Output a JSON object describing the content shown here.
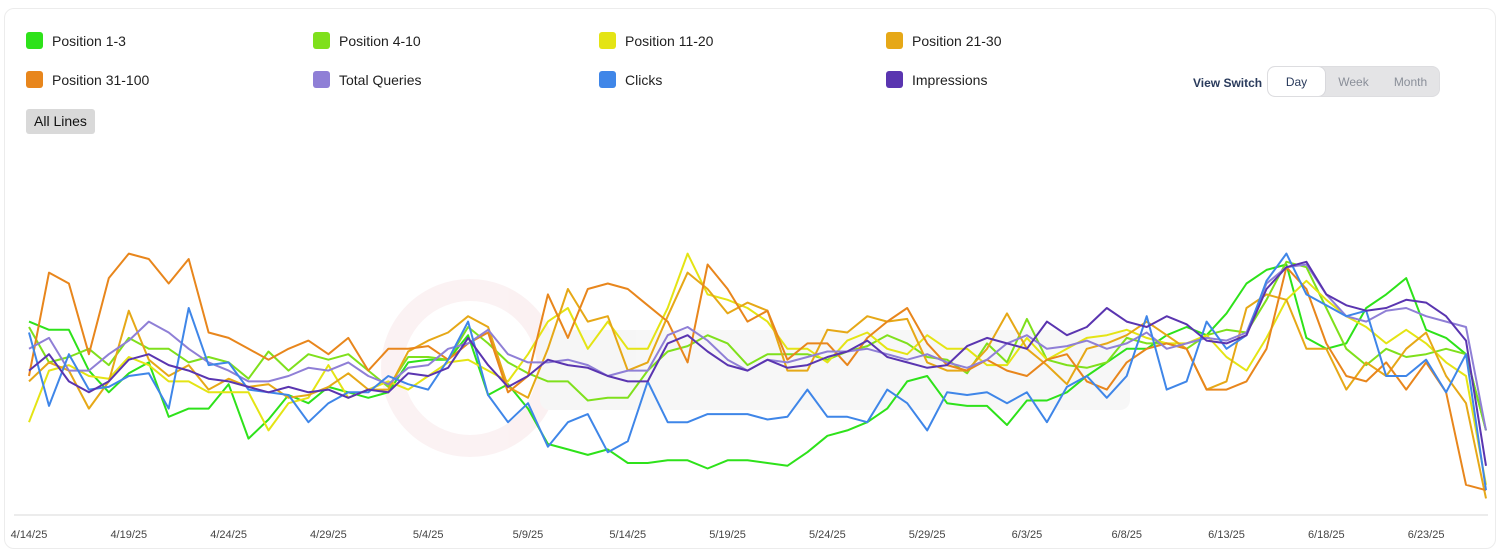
{
  "legend": [
    {
      "label": "Position 1-3",
      "color": "#2ee21a"
    },
    {
      "label": "Position 4-10",
      "color": "#7fe01c"
    },
    {
      "label": "Position 11-20",
      "color": "#e4e414"
    },
    {
      "label": "Position 21-30",
      "color": "#e6a817"
    },
    {
      "label": "Position 31-100",
      "color": "#e8861c"
    },
    {
      "label": "Total Queries",
      "color": "#8f7fd6"
    },
    {
      "label": "Clicks",
      "color": "#3f86e8"
    },
    {
      "label": "Impressions",
      "color": "#5a35b0"
    }
  ],
  "view_switch": {
    "label": "View Switch",
    "options": [
      "Day",
      "Week",
      "Month"
    ],
    "selected": "Day"
  },
  "all_lines_label": "All Lines",
  "chart_data": {
    "type": "line",
    "x": [
      "4/14/25",
      "4/15/25",
      "4/16/25",
      "4/17/25",
      "4/18/25",
      "4/19/25",
      "4/20/25",
      "4/21/25",
      "4/22/25",
      "4/23/25",
      "4/24/25",
      "4/25/25",
      "4/26/25",
      "4/27/25",
      "4/28/25",
      "4/29/25",
      "4/30/25",
      "5/1/25",
      "5/2/25",
      "5/3/25",
      "5/4/25",
      "5/5/25",
      "5/6/25",
      "5/7/25",
      "5/8/25",
      "5/9/25",
      "5/10/25",
      "5/11/25",
      "5/12/25",
      "5/13/25",
      "5/14/25",
      "5/15/25",
      "5/16/25",
      "5/17/25",
      "5/18/25",
      "5/19/25",
      "5/20/25",
      "5/21/25",
      "5/22/25",
      "5/23/25",
      "5/24/25",
      "5/25/25",
      "5/26/25",
      "5/27/25",
      "5/28/25",
      "5/29/25",
      "5/30/25",
      "5/31/25",
      "6/1/25",
      "6/2/25",
      "6/3/25",
      "6/4/25",
      "6/5/25",
      "6/6/25",
      "6/7/25",
      "6/8/25",
      "6/9/25",
      "6/10/25",
      "6/11/25",
      "6/12/25",
      "6/13/25",
      "6/14/25",
      "6/15/25",
      "6/16/25",
      "6/17/25",
      "6/18/25",
      "6/19/25",
      "6/20/25",
      "6/21/25",
      "6/22/25",
      "6/23/25",
      "6/24/25",
      "6/25/25",
      "6/26/25"
    ],
    "x_tick_labels": [
      "4/14/25",
      "4/19/25",
      "4/24/25",
      "4/29/25",
      "5/4/25",
      "5/9/25",
      "5/14/25",
      "5/19/25",
      "5/24/25",
      "5/29/25",
      "6/3/25",
      "6/8/25",
      "6/13/25",
      "6/18/25",
      "6/23/25"
    ],
    "y_range": [
      0,
      100
    ],
    "grid": false,
    "legend_placement": "top",
    "series": [
      {
        "name": "Position 1-3",
        "values": [
          70,
          67,
          67,
          52,
          44,
          51,
          55,
          35,
          38,
          38,
          47,
          27,
          34,
          43,
          40,
          46,
          44,
          42,
          44,
          55,
          56,
          56,
          65,
          43,
          47,
          38,
          25,
          23,
          21,
          23,
          18,
          18,
          19,
          19,
          16,
          19,
          19,
          18,
          17,
          22,
          28,
          30,
          33,
          38,
          48,
          50,
          40,
          39,
          39,
          32,
          41,
          41,
          44,
          50,
          55,
          60,
          60,
          65,
          68,
          65,
          73,
          84,
          89,
          91,
          64,
          60,
          62,
          75,
          80,
          86,
          67,
          64,
          58,
          30
        ]
      },
      {
        "name": "Position 4-10",
        "values": [
          68,
          55,
          57,
          60,
          54,
          64,
          60,
          60,
          55,
          57,
          55,
          49,
          59,
          52,
          58,
          56,
          58,
          52,
          46,
          57,
          57,
          56,
          68,
          62,
          55,
          51,
          48,
          48,
          41,
          42,
          42,
          52,
          59,
          61,
          65,
          62,
          54,
          58,
          58,
          58,
          56,
          59,
          61,
          65,
          62,
          57,
          56,
          51,
          62,
          55,
          71,
          56,
          54,
          53,
          55,
          64,
          62,
          62,
          60,
          65,
          67,
          66,
          78,
          92,
          90,
          75,
          60,
          54,
          60,
          57,
          58,
          60,
          58,
          30
        ]
      },
      {
        "name": "Position 11-20",
        "values": [
          33,
          52,
          54,
          50,
          49,
          57,
          54,
          48,
          48,
          44,
          44,
          44,
          30,
          40,
          42,
          54,
          42,
          45,
          48,
          45,
          50,
          55,
          56,
          52,
          48,
          58,
          70,
          75,
          60,
          70,
          60,
          60,
          75,
          95,
          80,
          78,
          75,
          70,
          60,
          60,
          55,
          63,
          66,
          60,
          58,
          65,
          60,
          60,
          54,
          54,
          64,
          56,
          60,
          64,
          65,
          67,
          64,
          62,
          62,
          65,
          57,
          52,
          64,
          78,
          85,
          78,
          72,
          68,
          62,
          67,
          62,
          55,
          50,
          10
        ]
      },
      {
        "name": "Position 21-30",
        "values": [
          48,
          55,
          52,
          38,
          48,
          74,
          56,
          50,
          54,
          45,
          49,
          46,
          47,
          42,
          43,
          46,
          51,
          45,
          45,
          59,
          63,
          66,
          72,
          68,
          46,
          42,
          60,
          82,
          70,
          72,
          52,
          55,
          72,
          88,
          82,
          73,
          77,
          74,
          52,
          52,
          67,
          66,
          72,
          70,
          71,
          55,
          52,
          52,
          60,
          73,
          60,
          54,
          47,
          60,
          62,
          65,
          70,
          65,
          60,
          45,
          48,
          75,
          80,
          78,
          60,
          60,
          45,
          55,
          50,
          60,
          66,
          50,
          40,
          5
        ]
      },
      {
        "name": "Position 31-100",
        "values": [
          50,
          88,
          84,
          58,
          86,
          95,
          93,
          84,
          93,
          66,
          64,
          60,
          56,
          60,
          63,
          58,
          64,
          52,
          60,
          60,
          61,
          56,
          62,
          66,
          44,
          50,
          80,
          64,
          82,
          84,
          82,
          76,
          70,
          55,
          91,
          82,
          70,
          74,
          56,
          62,
          62,
          54,
          64,
          70,
          75,
          62,
          54,
          52,
          56,
          52,
          50,
          56,
          58,
          48,
          45,
          55,
          60,
          62,
          60,
          45,
          45,
          48,
          60,
          90,
          82,
          62,
          50,
          48,
          55,
          45,
          55,
          44,
          10,
          8
        ]
      },
      {
        "name": "Total Queries",
        "values": [
          60,
          64,
          52,
          52,
          58,
          63,
          70,
          66,
          60,
          55,
          52,
          48,
          48,
          50,
          53,
          52,
          55,
          50,
          47,
          53,
          54,
          60,
          62,
          67,
          58,
          55,
          55,
          56,
          54,
          50,
          52,
          52,
          65,
          68,
          63,
          56,
          52,
          56,
          55,
          57,
          59,
          59,
          60,
          58,
          56,
          58,
          55,
          53,
          56,
          62,
          65,
          60,
          61,
          63,
          60,
          62,
          66,
          60,
          62,
          64,
          63,
          66,
          84,
          90,
          91,
          80,
          72,
          70,
          74,
          75,
          72,
          70,
          68,
          30
        ]
      },
      {
        "name": "Clicks",
        "values": [
          66,
          39,
          58,
          45,
          46,
          50,
          51,
          38,
          75,
          54,
          55,
          45,
          44,
          43,
          33,
          40,
          44,
          44,
          50,
          47,
          45,
          56,
          70,
          43,
          33,
          40,
          24,
          33,
          36,
          22,
          26,
          48,
          33,
          33,
          36,
          36,
          36,
          34,
          35,
          45,
          35,
          35,
          33,
          45,
          40,
          30,
          44,
          43,
          44,
          40,
          44,
          33,
          46,
          50,
          42,
          50,
          72,
          45,
          48,
          70,
          60,
          65,
          85,
          95,
          80,
          76,
          72,
          74,
          50,
          50,
          56,
          44,
          58,
          8
        ]
      },
      {
        "name": "Impressions",
        "values": [
          52,
          58,
          48,
          44,
          48,
          56,
          58,
          54,
          52,
          49,
          48,
          46,
          44,
          46,
          44,
          45,
          42,
          45,
          44,
          51,
          50,
          53,
          64,
          54,
          46,
          50,
          56,
          54,
          53,
          50,
          48,
          48,
          62,
          65,
          59,
          54,
          52,
          56,
          53,
          54,
          57,
          59,
          63,
          57,
          55,
          53,
          54,
          61,
          64,
          62,
          60,
          70,
          65,
          68,
          75,
          70,
          68,
          72,
          69,
          63,
          62,
          65,
          82,
          90,
          92,
          80,
          76,
          74,
          75,
          78,
          77,
          72,
          63,
          17
        ]
      }
    ]
  }
}
